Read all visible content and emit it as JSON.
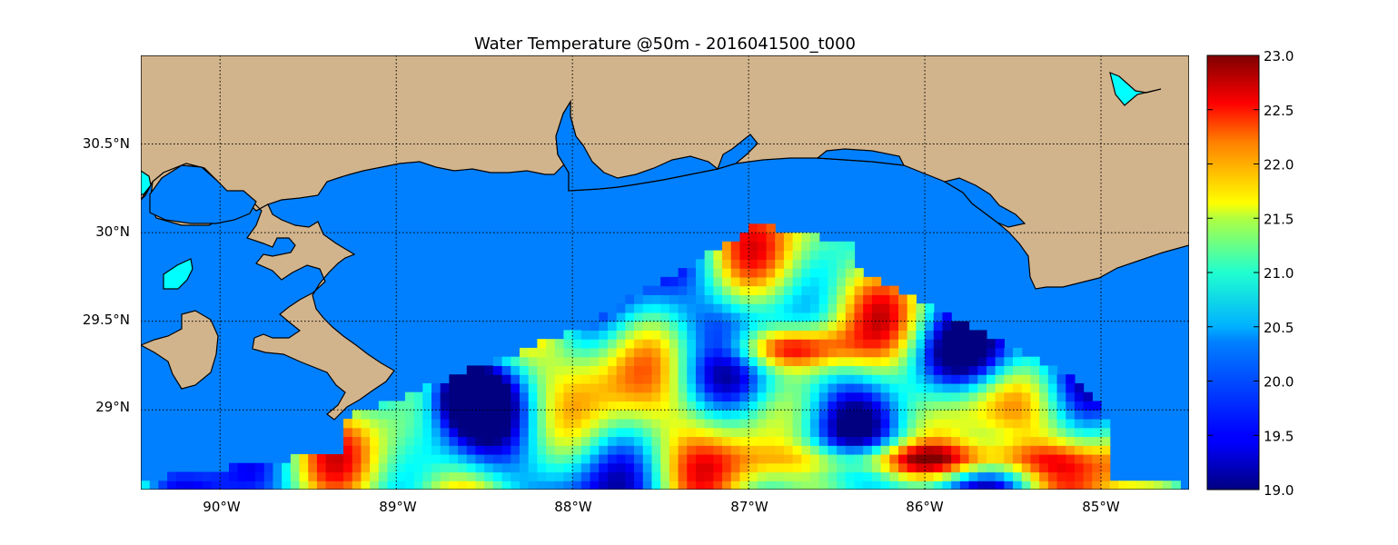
{
  "title": "Water Temperature @50m - 2016041500_t000",
  "map": {
    "lon_range": [
      -90.45,
      -84.5
    ],
    "lat_range": [
      28.55,
      31.0
    ],
    "lon_ticks": [
      {
        "value": -90,
        "label": "90°W"
      },
      {
        "value": -89,
        "label": "89°W"
      },
      {
        "value": -88,
        "label": "88°W"
      },
      {
        "value": -87,
        "label": "87°W"
      },
      {
        "value": -86,
        "label": "86°W"
      },
      {
        "value": -85,
        "label": "85°W"
      }
    ],
    "lat_ticks": [
      {
        "value": 30.5,
        "label": "30.5°N"
      },
      {
        "value": 30.0,
        "label": "30°N"
      },
      {
        "value": 29.5,
        "label": "29.5°N"
      },
      {
        "value": 29.0,
        "label": "29°N"
      }
    ],
    "land_color": "#d2b48c",
    "ocean_color": "#0080ff",
    "lake_color": "#00ffff",
    "grid": "dotted"
  },
  "colorbar": {
    "min": 19.0,
    "max": 23.0,
    "colormap": "jet",
    "ticks": [
      "23.0",
      "22.5",
      "22.0",
      "21.5",
      "21.0",
      "20.5",
      "20.0",
      "19.5",
      "19.0"
    ]
  }
}
